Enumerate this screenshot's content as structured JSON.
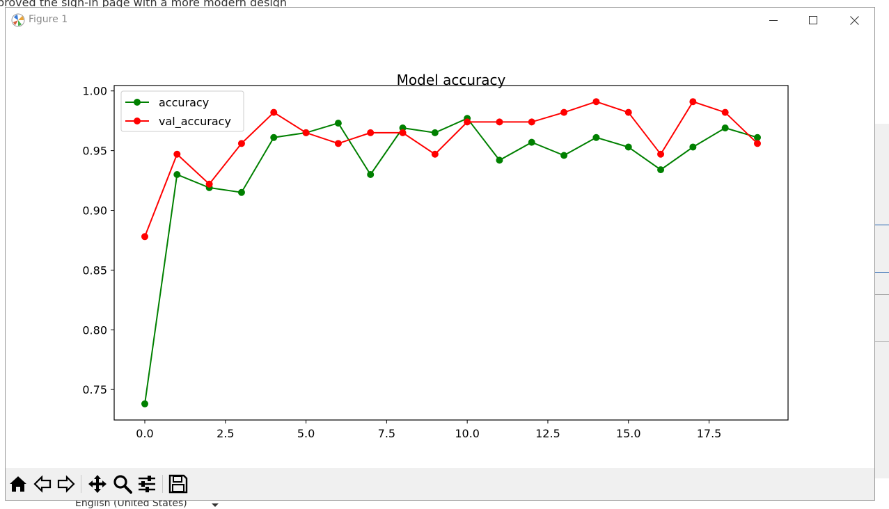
{
  "background": {
    "heading_text": "proved the sign-in page with a more modern design",
    "language_selector": "English (United States)"
  },
  "window": {
    "title": "Figure 1",
    "controls": {
      "minimize_icon": "minimize-icon",
      "maximize_icon": "maximize-icon",
      "close_icon": "close-icon"
    }
  },
  "toolbar": {
    "buttons": [
      {
        "name": "home-button",
        "icon": "home-icon"
      },
      {
        "name": "back-button",
        "icon": "back-arrow-icon"
      },
      {
        "name": "forward-button",
        "icon": "forward-arrow-icon"
      },
      {
        "name": "pan-button",
        "icon": "move-icon"
      },
      {
        "name": "zoom-button",
        "icon": "magnifier-icon"
      },
      {
        "name": "configure-subplots-button",
        "icon": "sliders-icon"
      },
      {
        "name": "save-button",
        "icon": "floppy-disk-icon"
      }
    ]
  },
  "chart_data": {
    "type": "line",
    "title": "Model accuracy",
    "xlabel": "",
    "ylabel": "",
    "xlim": [
      -0.95,
      19.95
    ],
    "ylim": [
      0.7245,
      1.0045
    ],
    "xticks": [
      0.0,
      2.5,
      5.0,
      7.5,
      10.0,
      12.5,
      15.0,
      17.5
    ],
    "xtick_labels": [
      "0.0",
      "2.5",
      "5.0",
      "7.5",
      "10.0",
      "12.5",
      "15.0",
      "17.5"
    ],
    "yticks": [
      0.75,
      0.8,
      0.85,
      0.9,
      0.95,
      1.0
    ],
    "ytick_labels": [
      "0.75",
      "0.80",
      "0.85",
      "0.90",
      "0.95",
      "1.00"
    ],
    "legend_position": "top-left",
    "grid": false,
    "x": [
      0,
      1,
      2,
      3,
      4,
      5,
      6,
      7,
      8,
      9,
      10,
      11,
      12,
      13,
      14,
      15,
      16,
      17,
      18,
      19
    ],
    "series": [
      {
        "name": "accuracy",
        "color": "#008000",
        "values": [
          0.738,
          0.93,
          0.919,
          0.915,
          0.961,
          0.965,
          0.973,
          0.93,
          0.969,
          0.965,
          0.977,
          0.942,
          0.957,
          0.946,
          0.961,
          0.953,
          0.934,
          0.953,
          0.969,
          0.961
        ]
      },
      {
        "name": "val_accuracy",
        "color": "#ff0000",
        "values": [
          0.878,
          0.947,
          0.922,
          0.956,
          0.982,
          0.965,
          0.956,
          0.965,
          0.965,
          0.947,
          0.974,
          0.974,
          0.974,
          0.982,
          0.991,
          0.982,
          0.947,
          0.991,
          0.982,
          0.956
        ]
      }
    ]
  }
}
